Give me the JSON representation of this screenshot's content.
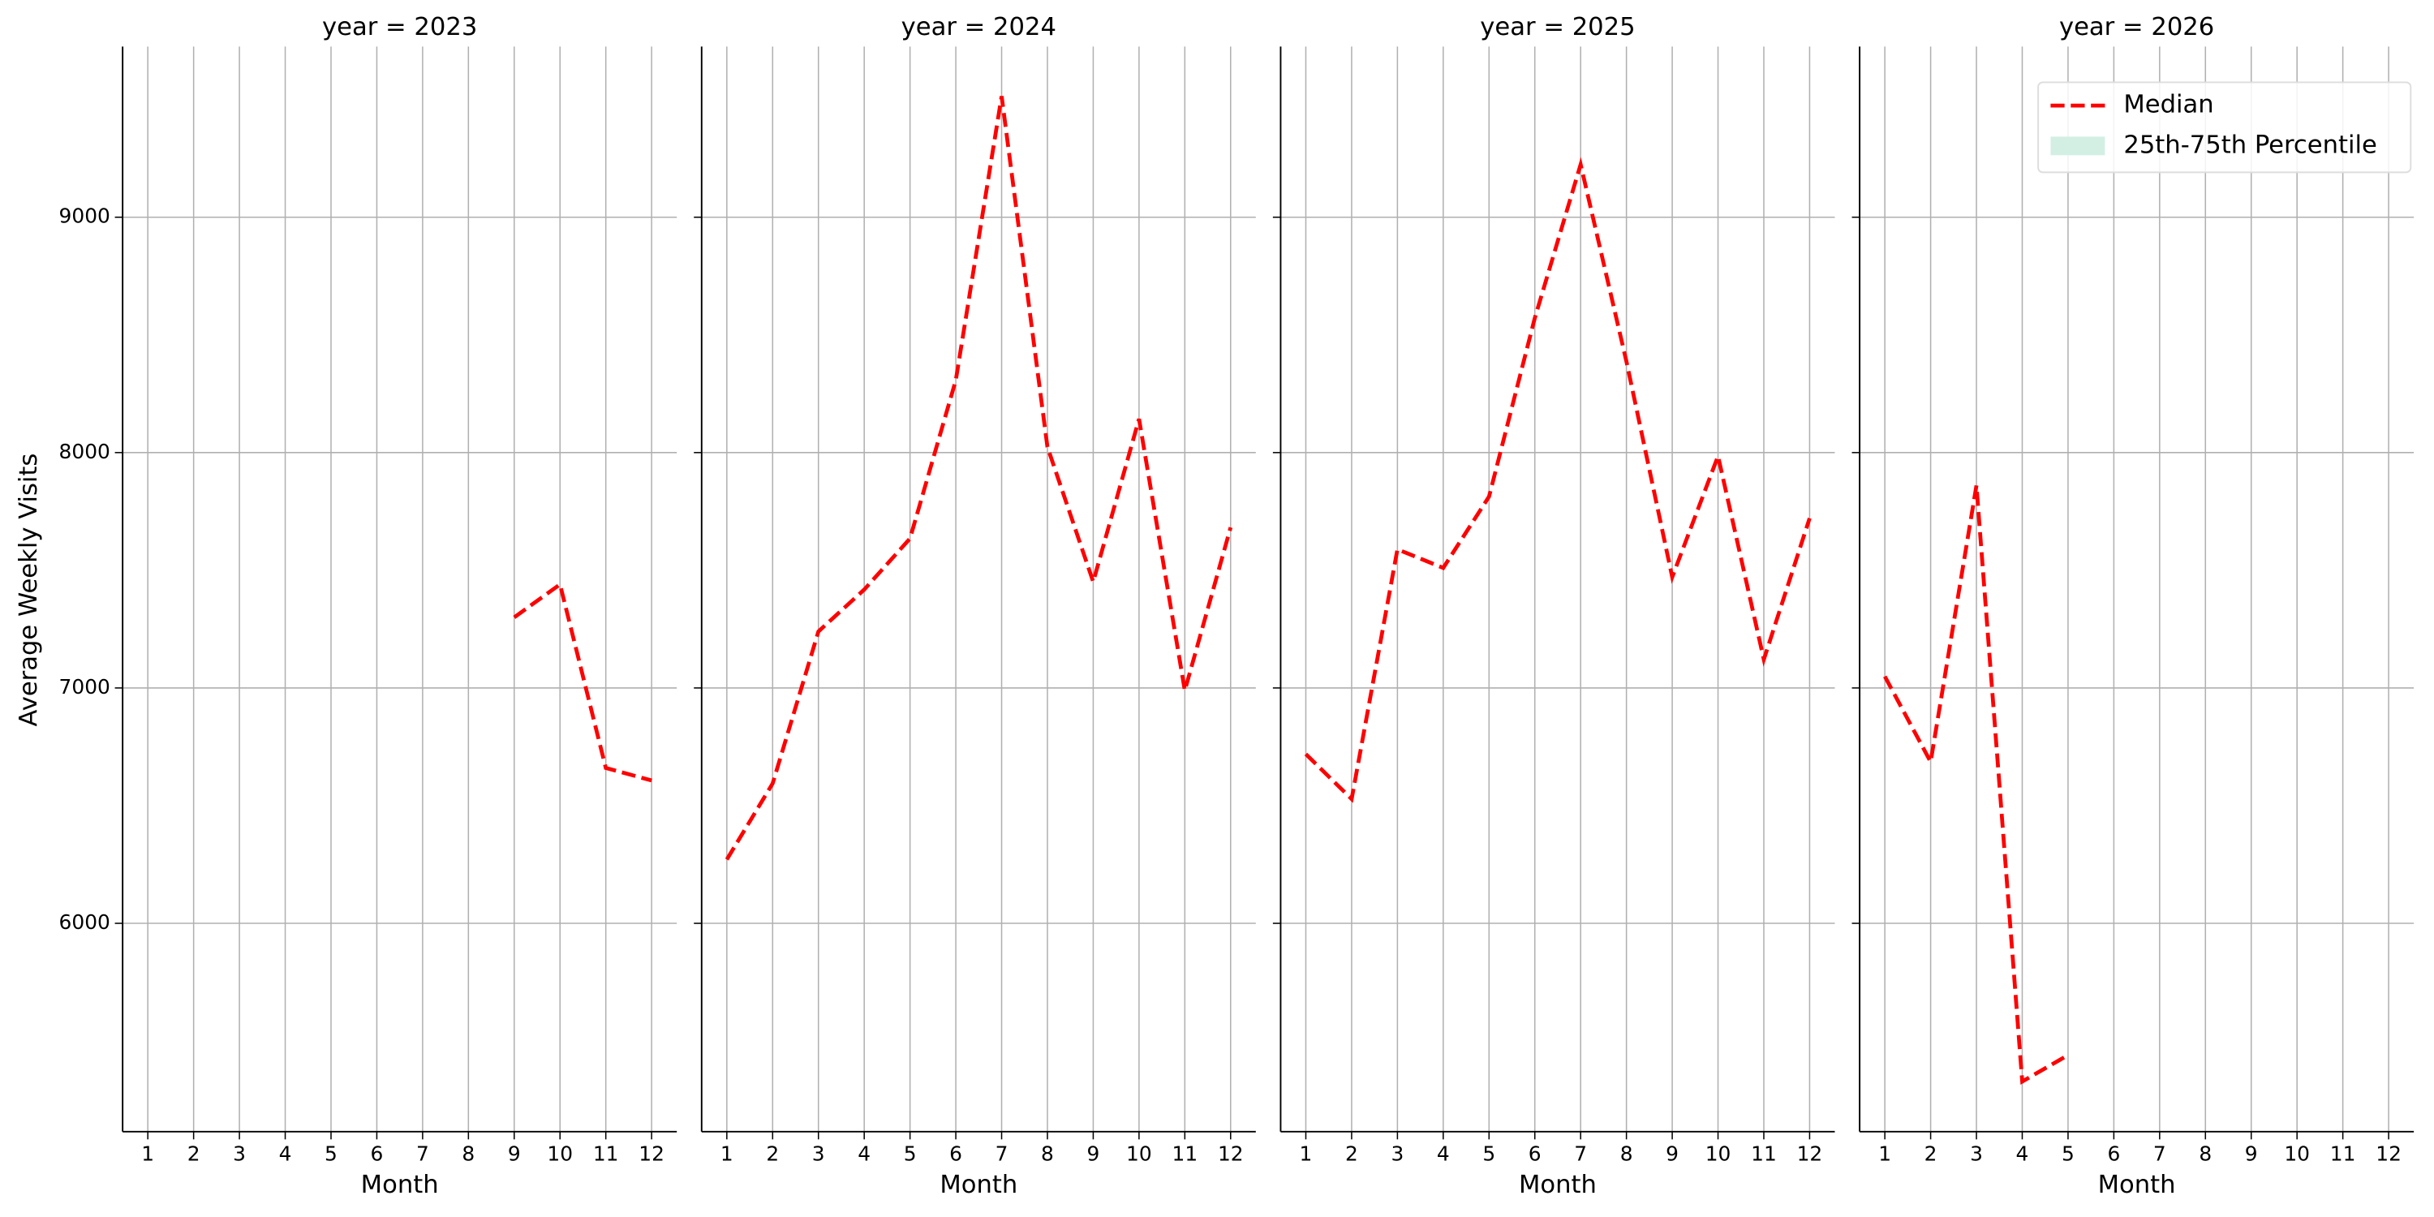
{
  "chart_data": [
    {
      "type": "line",
      "title": "year = 2023",
      "xlabel": "Month",
      "ylabel": "Average Weekly Visits",
      "show_yticklabels": true,
      "x": [
        1,
        2,
        3,
        4,
        5,
        6,
        7,
        8,
        9,
        10,
        11,
        12
      ],
      "series": [
        {
          "name": "Median",
          "color": "#ff0000",
          "dashed": true,
          "values": [
            null,
            null,
            null,
            null,
            null,
            null,
            null,
            null,
            7300,
            7440,
            6660,
            6607
          ]
        }
      ],
      "xlim": [
        0.45,
        12.55
      ],
      "xticks": [
        1,
        2,
        3,
        4,
        5,
        6,
        7,
        8,
        9,
        10,
        11,
        12
      ],
      "ylim": [
        5115,
        9725
      ],
      "yticks": [
        6000,
        7000,
        8000,
        9000
      ],
      "grid": true
    },
    {
      "type": "line",
      "title": "year = 2024",
      "xlabel": "Month",
      "show_yticklabels": false,
      "x": [
        1,
        2,
        3,
        4,
        5,
        6,
        7,
        8,
        9,
        10,
        11,
        12
      ],
      "series": [
        {
          "name": "Median",
          "color": "#ff0000",
          "dashed": true,
          "values": [
            6271,
            6594,
            7240,
            7418,
            7635,
            8308,
            9514,
            8024,
            7451,
            8143,
            6989,
            7682
          ]
        }
      ],
      "xlim": [
        0.45,
        12.55
      ],
      "xticks": [
        1,
        2,
        3,
        4,
        5,
        6,
        7,
        8,
        9,
        10,
        11,
        12
      ],
      "ylim": [
        5115,
        9725
      ],
      "yticks": [
        6000,
        7000,
        8000,
        9000
      ],
      "grid": true
    },
    {
      "type": "line",
      "title": "year = 2025",
      "xlabel": "Month",
      "show_yticklabels": false,
      "x": [
        1,
        2,
        3,
        4,
        5,
        6,
        7,
        8,
        9,
        10,
        11,
        12
      ],
      "series": [
        {
          "name": "Median",
          "color": "#ff0000",
          "dashed": true,
          "values": [
            6719,
            6528,
            7589,
            7510,
            7813,
            8572,
            9224,
            8387,
            7471,
            7985,
            7121,
            7721
          ]
        }
      ],
      "xlim": [
        0.45,
        12.55
      ],
      "xticks": [
        1,
        2,
        3,
        4,
        5,
        6,
        7,
        8,
        9,
        10,
        11,
        12
      ],
      "ylim": [
        5115,
        9725
      ],
      "yticks": [
        6000,
        7000,
        8000,
        9000
      ],
      "grid": true
    },
    {
      "type": "line",
      "title": "year = 2026",
      "xlabel": "Month",
      "show_yticklabels": false,
      "x": [
        1,
        2,
        3,
        4,
        5,
        6,
        7,
        8,
        9,
        10,
        11,
        12
      ],
      "series": [
        {
          "name": "Median",
          "color": "#ff0000",
          "dashed": true,
          "values": [
            7049,
            6686,
            7860,
            5328,
            5440,
            null,
            null,
            null,
            null,
            null,
            null,
            null
          ]
        }
      ],
      "xlim": [
        0.45,
        12.55
      ],
      "xticks": [
        1,
        2,
        3,
        4,
        5,
        6,
        7,
        8,
        9,
        10,
        11,
        12
      ],
      "ylim": [
        5115,
        9725
      ],
      "yticks": [
        6000,
        7000,
        8000,
        9000
      ],
      "grid": true,
      "legend": {
        "loc": "upper right",
        "entries": [
          {
            "name": "Median",
            "color": "#ff0000",
            "dashed": true
          },
          {
            "name": "25th-75th Percentile",
            "color": "#d3efe4",
            "patch": true
          }
        ]
      }
    }
  ]
}
